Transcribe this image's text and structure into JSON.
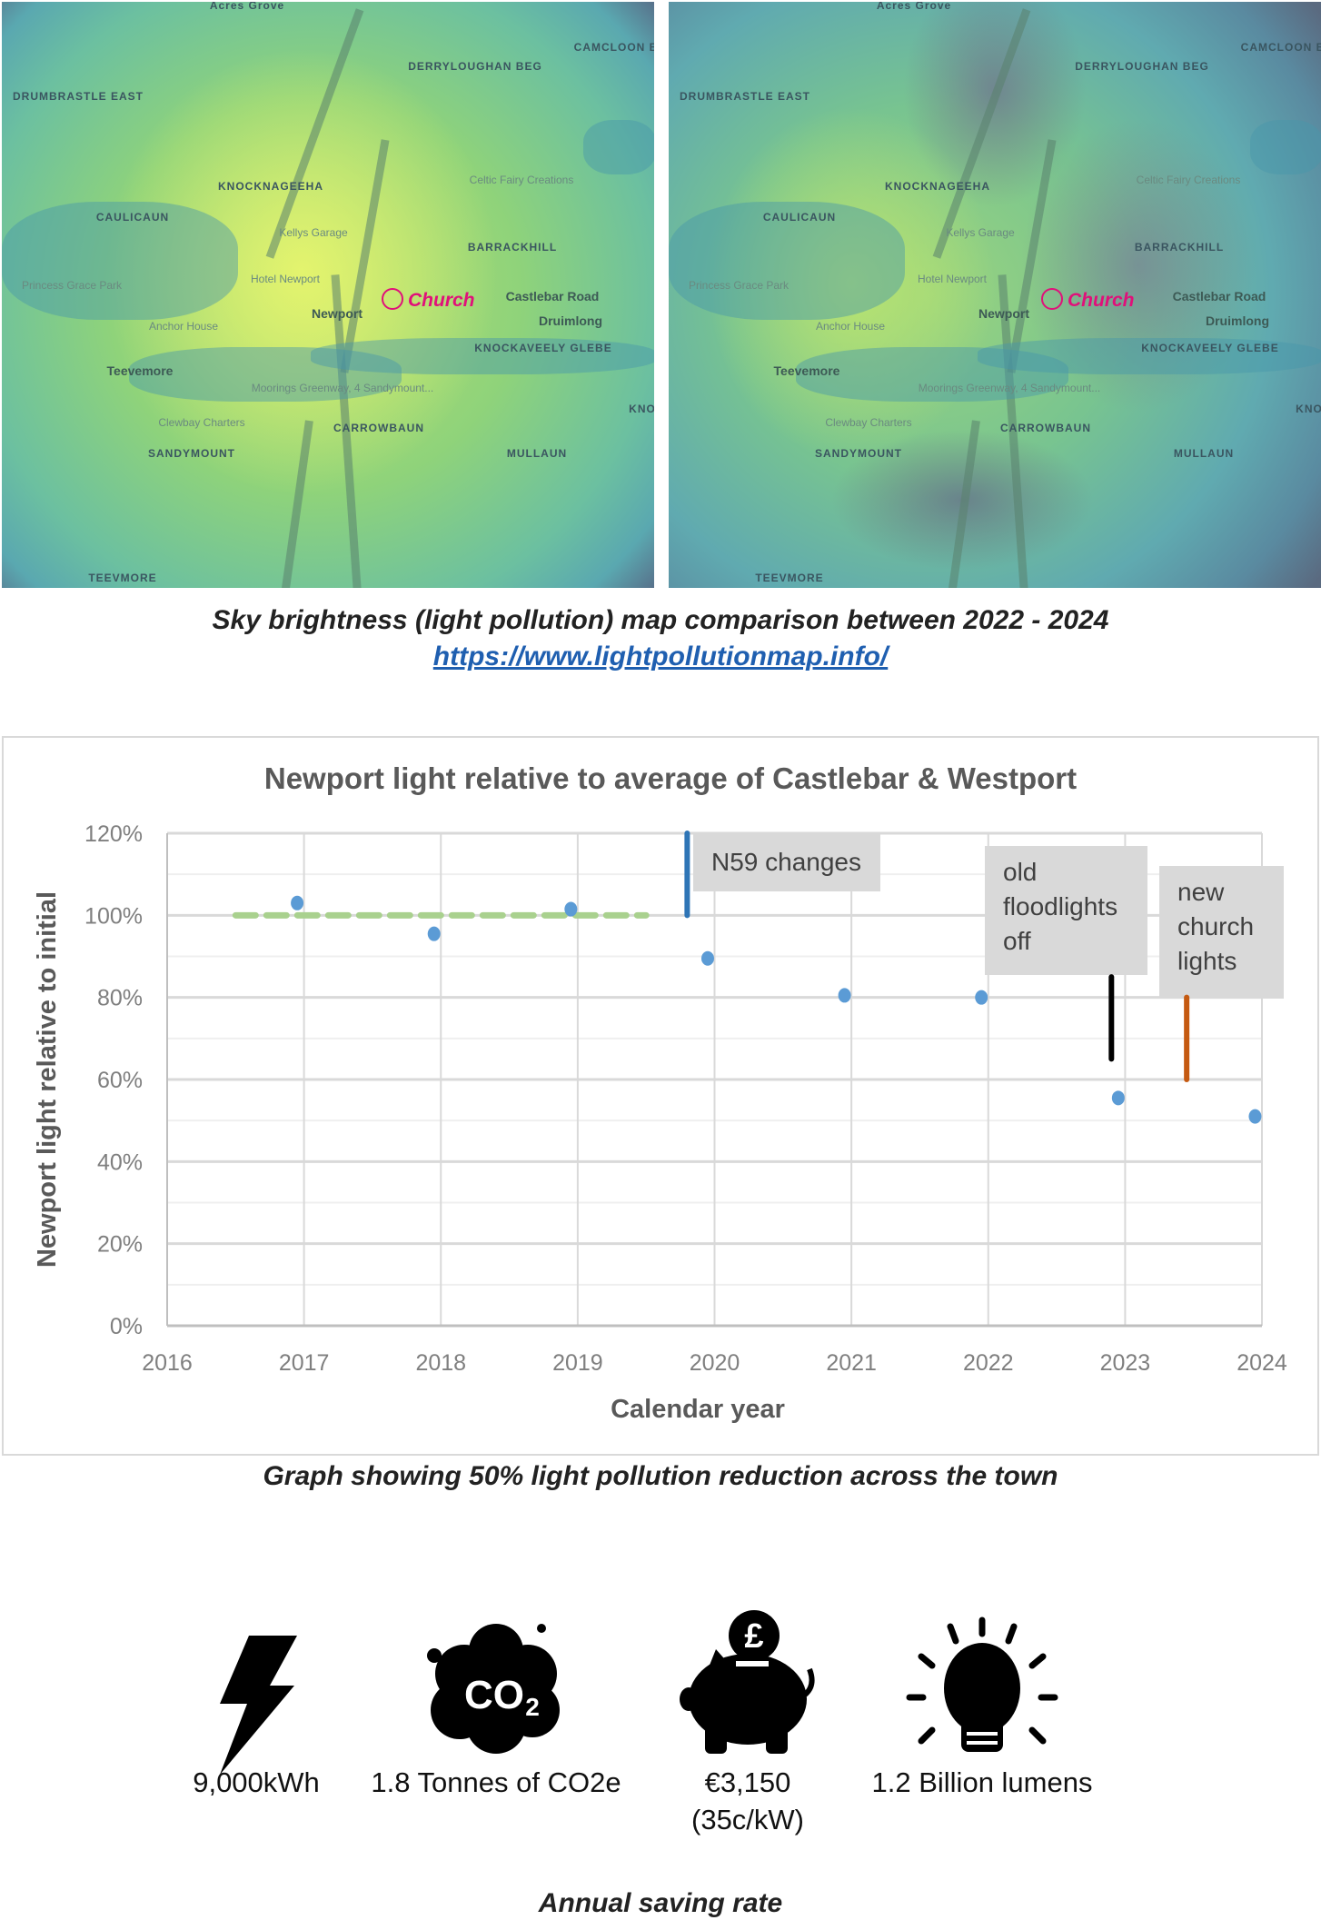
{
  "maps": {
    "labels": [
      {
        "text": "Acres Grove",
        "kind": "area"
      },
      {
        "text": "DERRYLOUGHAN BEG",
        "kind": "area"
      },
      {
        "text": "CAMCLOON B",
        "kind": "area"
      },
      {
        "text": "DRUMBRASTLE EAST",
        "kind": "area"
      },
      {
        "text": "KNOCKNAGEEHA",
        "kind": "area"
      },
      {
        "text": "Celtic Fairy Creations",
        "kind": "poi"
      },
      {
        "text": "CAULICAUN",
        "kind": "area"
      },
      {
        "text": "Kellys Garage",
        "kind": "poi"
      },
      {
        "text": "BARRACKHILL",
        "kind": "area"
      },
      {
        "text": "Princess Grace Park",
        "kind": "poi"
      },
      {
        "text": "Hotel Newport",
        "kind": "poi"
      },
      {
        "text": "Castlebar Road",
        "kind": "town"
      },
      {
        "text": "Druimlong",
        "kind": "town"
      },
      {
        "text": "Newport",
        "kind": "town"
      },
      {
        "text": "Anchor House",
        "kind": "poi"
      },
      {
        "text": "KNOCKAVEELY GLEBE",
        "kind": "area"
      },
      {
        "text": "Teevemore",
        "kind": "town"
      },
      {
        "text": "Moorings Greenway, 4 Sandymount...",
        "kind": "poi"
      },
      {
        "text": "Clewbay Charters",
        "kind": "poi"
      },
      {
        "text": "CARROWBAUN",
        "kind": "area"
      },
      {
        "text": "SANDYMOUNT",
        "kind": "area"
      },
      {
        "text": "MULLAUN",
        "kind": "area"
      },
      {
        "text": "TEEVMORE",
        "kind": "area"
      },
      {
        "text": "KNO",
        "kind": "area"
      }
    ],
    "church_label": "Church",
    "church_color": "#e0107a"
  },
  "captions": {
    "maps": "Sky brightness (light pollution) map comparison between 2022 - 2024",
    "link": "https://www.lightpollutionmap.info/",
    "chart": "Graph showing 50% light pollution reduction across the town",
    "savings": "Annual saving rate"
  },
  "chart_data": {
    "type": "scatter",
    "title": "Newport light relative to average of Castlebar & Westport",
    "xlabel": "Calendar year",
    "ylabel": "Newport light relative to initial",
    "xlim": [
      2016,
      2024
    ],
    "ylim": [
      0,
      120
    ],
    "x_ticks": [
      "2016",
      "2017",
      "2018",
      "2019",
      "2020",
      "2021",
      "2022",
      "2023",
      "2024"
    ],
    "y_ticks": [
      "0%",
      "20%",
      "40%",
      "60%",
      "80%",
      "100%",
      "120%"
    ],
    "grid": true,
    "points": {
      "x": [
        2016.95,
        2017.95,
        2018.95,
        2019.95,
        2020.95,
        2021.95,
        2022.95,
        2023.95
      ],
      "y": [
        103,
        95.5,
        101.5,
        89.5,
        80.5,
        80,
        55.5,
        51
      ],
      "color": "#5b9bd5"
    },
    "baseline": {
      "x": [
        2016.5,
        2019.5
      ],
      "y": 100,
      "color": "#a9d18e",
      "style": "dashed"
    },
    "markers": [
      {
        "label": "N59 changes",
        "x": 2019.8,
        "y": [
          100,
          120
        ],
        "color": "#2e75b6"
      },
      {
        "label": "old floodlights off",
        "lines": [
          "old",
          "floodlights",
          "off"
        ],
        "x": 2022.9,
        "y": [
          65,
          85
        ],
        "color": "#000000"
      },
      {
        "label": "new church lights",
        "lines": [
          "new",
          "church",
          "lights"
        ],
        "x": 2023.45,
        "y": [
          60,
          80
        ],
        "color": "#c55a11"
      }
    ]
  },
  "savings": [
    {
      "icon": "lightning-bolt-icon",
      "lines": [
        "9,000kWh"
      ]
    },
    {
      "icon": "co2-cloud-icon",
      "lines": [
        "1.8 Tonnes of CO2e"
      ],
      "glyph": "CO2"
    },
    {
      "icon": "piggy-bank-icon",
      "lines": [
        "€3,150",
        "(35c/kW)"
      ],
      "glyph": "£"
    },
    {
      "icon": "light-bulb-icon",
      "lines": [
        "1.2 Billion lumens"
      ]
    }
  ]
}
